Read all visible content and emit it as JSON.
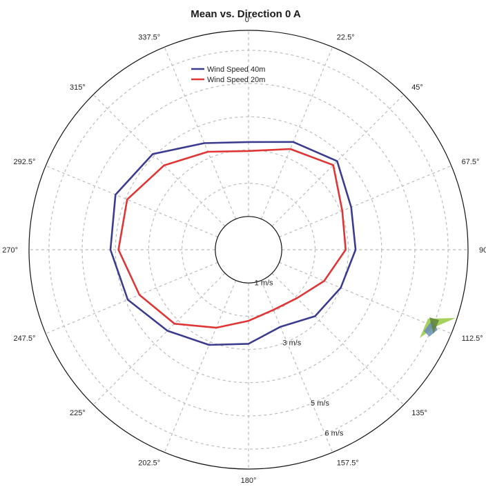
{
  "chart_data": {
    "type": "line",
    "subtype": "polar",
    "title": "Mean vs. Direction 0 A",
    "directions": [
      "0°",
      "22.5°",
      "45°",
      "67.5°",
      "90",
      "112.5°",
      "135°",
      "157.5°",
      "180°",
      "202.5°",
      "225°",
      "247.5°",
      "270°",
      "292.5°",
      "315°",
      "337.5°"
    ],
    "direction_degrees": [
      0,
      22.5,
      45,
      67.5,
      90,
      112.5,
      135,
      157.5,
      180,
      202.5,
      225,
      247.5,
      270,
      292.5,
      315,
      337.5
    ],
    "radial_labels": [
      {
        "value": 1,
        "text": "1 m/s"
      },
      {
        "value": 3,
        "text": "3 m/s"
      },
      {
        "value": 5,
        "text": "5 m/s"
      },
      {
        "value": 6,
        "text": "6 m/s"
      }
    ],
    "rlim": [
      0,
      6.6
    ],
    "inner_circle_value": 1,
    "grid": true,
    "legend_position": "top-left",
    "series": [
      {
        "name": "Wind Speed 40m",
        "color": "#3b3b8f",
        "values": [
          3.24,
          3.51,
          3.77,
          3.34,
          3.22,
          3.0,
          2.83,
          2.51,
          2.83,
          3.1,
          3.45,
          3.93,
          4.15,
          4.33,
          4.07,
          3.47
        ]
      },
      {
        "name": "Wind Speed 20m",
        "color": "#e03535",
        "values": [
          2.97,
          3.28,
          3.6,
          3.05,
          2.92,
          2.46,
          2.06,
          1.96,
          2.14,
          2.54,
          3.15,
          3.55,
          3.91,
          3.95,
          3.59,
          3.19
        ]
      }
    ]
  }
}
